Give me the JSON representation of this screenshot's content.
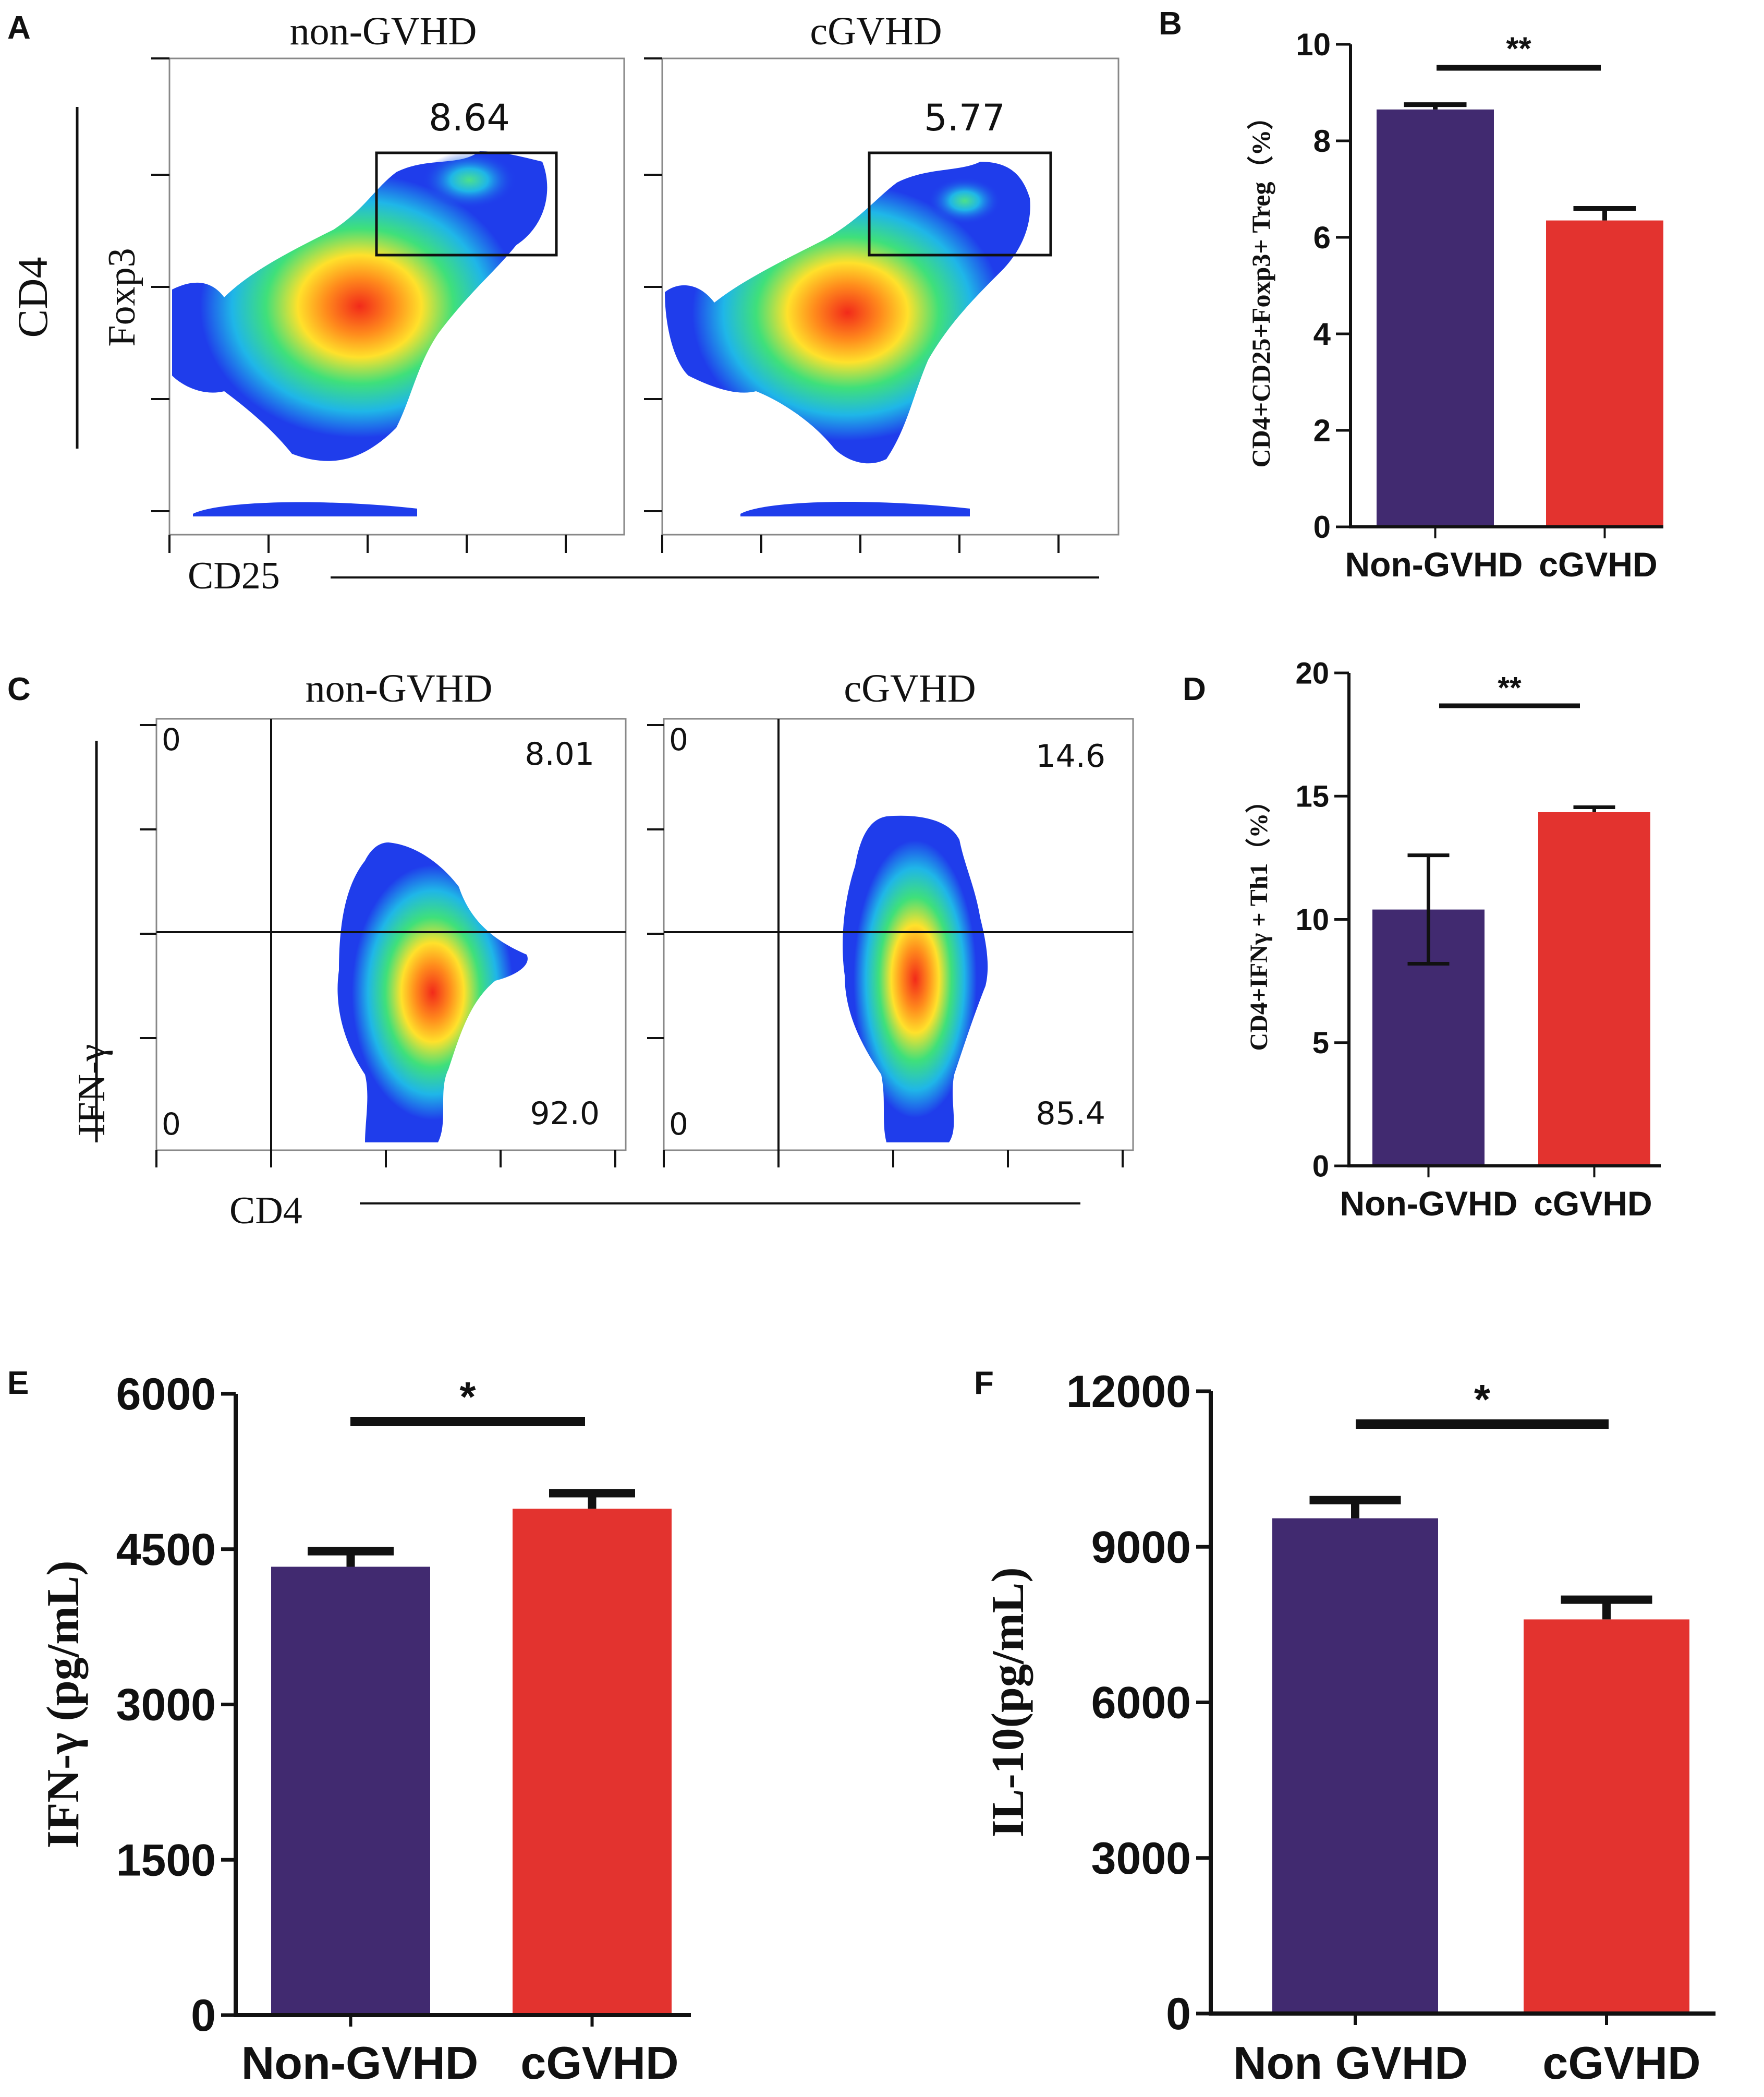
{
  "colors": {
    "bar_non_gvhd": "#412A70",
    "bar_cgvhd": "#E3332F",
    "axis": "#111111",
    "density_low": "#1F3DEB",
    "density_mid": "#3FE07A",
    "density_high": "#FFE12B",
    "density_peak": "#F22A1A"
  },
  "panel_letters": {
    "a": "A",
    "b": "B",
    "c": "C",
    "d": "D",
    "e": "E",
    "f": "F"
  },
  "panel_a": {
    "outer_y_label": "CD4",
    "y_label": "Foxp3",
    "x_label": "CD25",
    "plots": [
      {
        "title": "non-GVHD",
        "gate_value": "8.64"
      },
      {
        "title": "cGVHD",
        "gate_value": "5.77"
      }
    ]
  },
  "panel_c": {
    "y_label": "IFN-γ",
    "x_label": "CD4",
    "plots": [
      {
        "title": "non-GVHD",
        "q_upper_left": "0",
        "q_upper_right": "8.01",
        "q_lower_left": "0",
        "q_lower_right": "92.0"
      },
      {
        "title": "cGVHD",
        "q_upper_left": "0",
        "q_upper_right": "14.6",
        "q_lower_left": "0",
        "q_lower_right": "85.4"
      }
    ]
  },
  "chart_data": [
    {
      "id": "B",
      "type": "bar",
      "categories": [
        "Non-GVHD",
        "cGVHD"
      ],
      "values": [
        8.65,
        6.35
      ],
      "errors": [
        0.1,
        0.25
      ],
      "ylabel": "CD4+CD25+Foxp3+ Treg（%）",
      "ylim": [
        0,
        10
      ],
      "yticks": [
        0,
        2,
        4,
        6,
        8,
        10
      ],
      "significance": "**"
    },
    {
      "id": "D",
      "type": "bar",
      "categories": [
        "Non-GVHD",
        "cGVHD"
      ],
      "values": [
        10.4,
        14.35
      ],
      "errors": [
        2.2,
        0.2
      ],
      "error_both_sides": [
        true,
        false
      ],
      "ylabel": "CD4+IFNγ + Th1（%）",
      "ylim": [
        0,
        20
      ],
      "yticks": [
        0,
        5,
        10,
        15,
        20
      ],
      "significance": "**"
    },
    {
      "id": "E",
      "type": "bar",
      "categories": [
        "Non-GVHD",
        "cGVHD"
      ],
      "values": [
        4330,
        4890
      ],
      "errors": [
        150,
        150
      ],
      "ylabel": "IFN-γ (pg/mL)",
      "ylim": [
        0,
        6000
      ],
      "yticks": [
        0,
        1500,
        3000,
        4500,
        6000
      ],
      "significance": "*"
    },
    {
      "id": "F",
      "type": "bar",
      "categories": [
        "Non GVHD",
        "cGVHD"
      ],
      "values": [
        9550,
        7600
      ],
      "errors": [
        350,
        380
      ],
      "ylabel": "IL-10(pg/mL)",
      "ylim": [
        0,
        12000
      ],
      "yticks": [
        0,
        3000,
        6000,
        9000,
        12000
      ],
      "significance": "*"
    }
  ]
}
